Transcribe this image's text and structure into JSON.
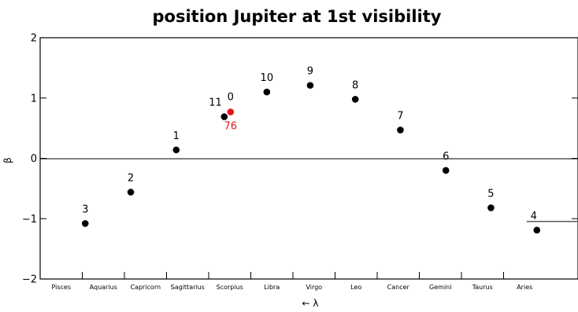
{
  "chart_data": {
    "type": "scatter",
    "title": "position Jupiter at 1st visibility",
    "xlabel": "← λ",
    "ylabel": "β",
    "ylim": [
      -2,
      2
    ],
    "yticks": [
      -2,
      -1,
      0,
      1,
      2
    ],
    "ytick_labels": [
      "−2",
      "−1",
      "0",
      "1",
      "2"
    ],
    "x_direction": "decreasing longitude (left to right: Pisces → Aries)",
    "x_categories": [
      "Pisces",
      "Aquarius",
      "Capricorn",
      "Sagittarius",
      "Scorpius",
      "Libra",
      "Virgo",
      "Leo",
      "Cancer",
      "Gemini",
      "Taurus",
      "Aries"
    ],
    "zero_line": true,
    "series": [
      {
        "color": "#000000",
        "points": [
          {
            "label": "3",
            "x": 1.07,
            "y": -1.08
          },
          {
            "label": "2",
            "x": 2.15,
            "y": -0.56
          },
          {
            "label": "1",
            "x": 3.23,
            "y": 0.14
          },
          {
            "label": "11",
            "x": 4.37,
            "y": 0.69
          },
          {
            "label": "10",
            "x": 5.38,
            "y": 1.1
          },
          {
            "label": "9",
            "x": 6.41,
            "y": 1.21
          },
          {
            "label": "8",
            "x": 7.48,
            "y": 0.98
          },
          {
            "label": "7",
            "x": 8.55,
            "y": 0.47
          },
          {
            "label": "6",
            "x": 9.63,
            "y": -0.2
          },
          {
            "label": "5",
            "x": 10.7,
            "y": -0.82
          },
          {
            "label": "4",
            "x": 11.79,
            "y": -1.19
          }
        ]
      },
      {
        "color": "#e8141c",
        "points": [
          {
            "label": "0",
            "x": 4.52,
            "y": 0.77
          }
        ]
      }
    ],
    "extra_annotations": [
      {
        "text": "76",
        "color": "#e8141c"
      }
    ]
  }
}
